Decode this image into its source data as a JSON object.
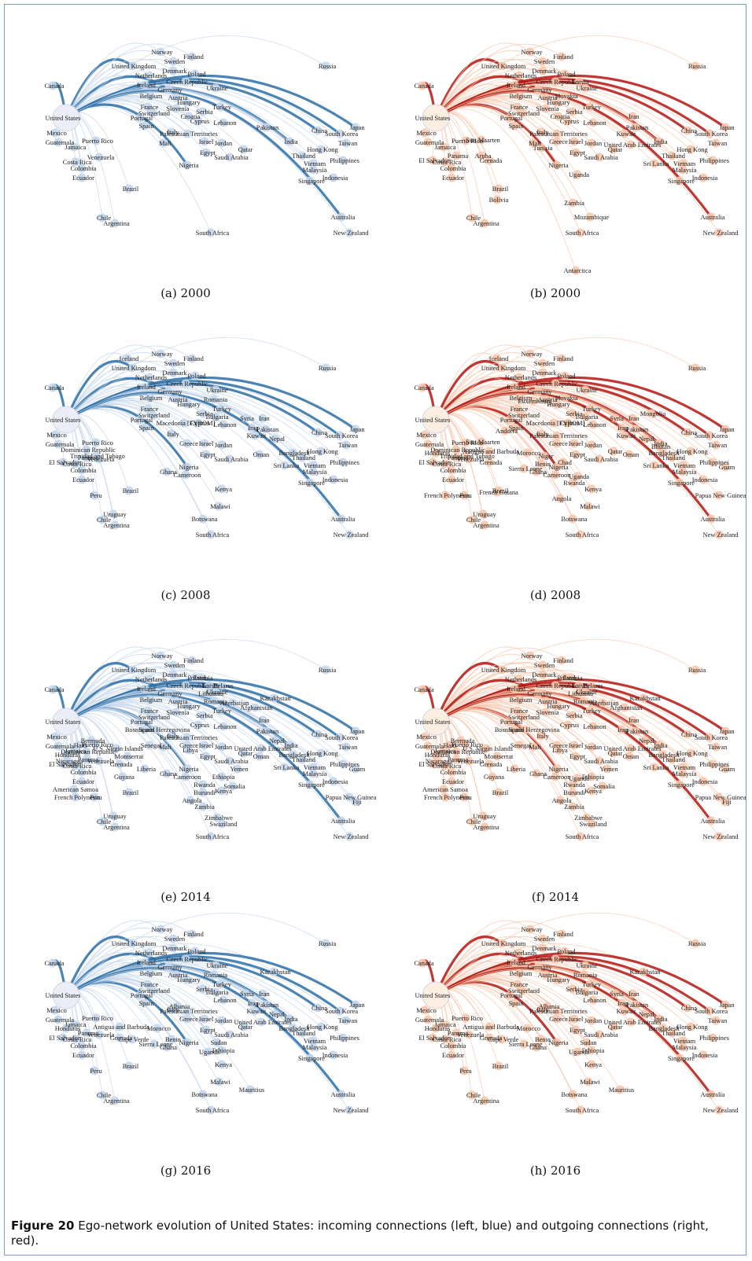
{
  "caption": {
    "label": "Figure 20",
    "text": "Ego-network evolution of United States: incoming connections (left, blue) and outgoing connections (right, red)."
  },
  "colors": {
    "incoming": "#2c6ea6",
    "incoming_light": "#c4d6ea",
    "outgoing": "#b31612",
    "outgoing_light": "#f6c7ad",
    "frame": "#7a9cc6"
  },
  "panels": [
    {
      "id": "a",
      "caption": "(a) 2000",
      "color": "blue",
      "hub": "United States",
      "labels": [
        "Canada",
        "United States",
        "Mexico",
        "Guatemala",
        "Jamaica",
        "Costa Rica",
        "Colombia",
        "Venezuela",
        "Ecuador",
        "Puerto Rico",
        "Brazil",
        "Chile",
        "Argentina",
        "United Kingdom",
        "Norway",
        "Sweden",
        "Finland",
        "Denmark",
        "Netherlands",
        "Poland",
        "Czech Republic",
        "Ireland",
        "Germany",
        "Ukraine",
        "Belgium",
        "Austria",
        "Hungary",
        "Slovenia",
        "France",
        "Switzerland",
        "Serbia",
        "Turkey",
        "Portugal",
        "Lebanon",
        "Spain",
        "Croatia",
        "Cyprus",
        "Italy",
        "Palestinian Territories",
        "Israel",
        "Pakistan",
        "Jordan",
        "Mali",
        "Egypt",
        "Qatar",
        "Nigeria",
        "Saudi Arabia",
        "India",
        "China",
        "South Korea",
        "Japan",
        "Taiwan",
        "Hong Kong",
        "Thailand",
        "Philippines",
        "Vietnam",
        "Malaysia",
        "Indonesia",
        "Singapore",
        "Russia",
        "South Africa",
        "Australia",
        "New Zealand"
      ]
    },
    {
      "id": "b",
      "caption": "(b) 2000",
      "color": "red",
      "hub": "United States",
      "labels": [
        "Canada",
        "United States",
        "Puerto Rico",
        "Sint Maarten",
        "Guatemala",
        "Mexico",
        "Jamaica",
        "El Salvador",
        "Panama",
        "Aruba",
        "Grenada",
        "Costa Rica",
        "Colombia",
        "Ecuador",
        "Brazil",
        "Bolivia",
        "Chile",
        "Argentina",
        "Antarctica",
        "United Kingdom",
        "Norway",
        "Sweden",
        "Finland",
        "Denmark",
        "Netherlands",
        "Czech Republic",
        "Poland",
        "Latvia",
        "Ukraine",
        "Ireland",
        "Germany",
        "Slovakia",
        "Belgium",
        "Hungary",
        "Turkey",
        "France",
        "Austria",
        "Serbia",
        "Switzerland",
        "Slovenia",
        "Iran",
        "Portugal",
        "Cyprus",
        "Spain",
        "Croatia",
        "Lebanon",
        "Italy",
        "Palestinian Territories",
        "Kuwait",
        "Pakistan",
        "Tunisia",
        "Greece",
        "Israel",
        "Qatar",
        "India",
        "Mali",
        "Egypt",
        "Jordan",
        "United Arab Emirates",
        "Thailand",
        "Saudi Arabia",
        "Sri Lanka",
        "Nigeria",
        "Uganda",
        "Zambia",
        "Mozambique",
        "South Africa",
        "China",
        "South Korea",
        "Japan",
        "Taiwan",
        "Hong Kong",
        "Philippines",
        "Vietnam",
        "Malaysia",
        "Indonesia",
        "Singapore",
        "Russia",
        "Australia",
        "New Zealand"
      ]
    },
    {
      "id": "c",
      "caption": "(c) 2008",
      "color": "blue",
      "hub": "United States",
      "labels": [
        "Canada",
        "United States",
        "Guatemala",
        "Mexico",
        "Dominican Republic",
        "Puerto Rico",
        "Panama",
        "Trinidad and Tobago",
        "El Salvador",
        "Costa Rica",
        "Venezuela",
        "Colombia",
        "Ecuador",
        "Peru",
        "Brazil",
        "Chile",
        "Uruguay",
        "Argentina",
        "Iceland",
        "Norway",
        "Sweden",
        "Finland",
        "Denmark",
        "Czech Republic",
        "United Kingdom",
        "Netherlands",
        "Poland",
        "Ireland",
        "Germany",
        "Ukraine",
        "Belgium",
        "Hungary",
        "Austria",
        "Romania",
        "France",
        "Turkey",
        "Serbia",
        "Bulgaria",
        "Portugal",
        "Switzerland",
        "Macedonia [FYROM]",
        "Cyprus",
        "Syria",
        "Spain",
        "Iran",
        "Italy",
        "Lebanon",
        "Iraq",
        "Kuwait",
        "Greece",
        "Israel",
        "Pakistan",
        "Jordan",
        "Nepal",
        "Egypt",
        "Saudi Arabia",
        "Nigeria",
        "Bangladesh",
        "Ghana",
        "Cameroon",
        "Oman",
        "Sri Lanka",
        "Kenya",
        "Malawi",
        "Botswana",
        "South Africa",
        "China",
        "South Korea",
        "Japan",
        "Taiwan",
        "Hong Kong",
        "Thailand",
        "Philippines",
        "Vietnam",
        "Malaysia",
        "Singapore",
        "Indonesia",
        "Russia",
        "Australia",
        "New Zealand"
      ]
    },
    {
      "id": "d",
      "caption": "(d) 2008",
      "color": "red",
      "hub": "United States",
      "labels": [
        "Canada",
        "United States",
        "Sint Maarten",
        "Puerto Rico",
        "Mexico",
        "Dominican Republic",
        "Guatemala",
        "Honduras",
        "Antigua and Barbuda",
        "Panama",
        "El Salvador",
        "Grenada",
        "Costa Rica",
        "Trinidad and Tobago",
        "Colombia",
        "French Polynesia",
        "Venezuela",
        "Ecuador",
        "French Guiana",
        "Peru",
        "Brazil",
        "Uruguay",
        "Chile",
        "Argentina",
        "Iceland",
        "Norway",
        "Sweden",
        "Finland",
        "United Kingdom",
        "Denmark",
        "Czech Republic",
        "Netherlands",
        "Poland",
        "Ukraine",
        "Belgium",
        "Germany",
        "Slovakia",
        "Ireland",
        "Luxembourg",
        "Hungary",
        "Turkey",
        "Syria",
        "France",
        "Austria",
        "Mongolia",
        "Portugal",
        "Switzerland",
        "Serbia",
        "Bulgaria",
        "Macedonia [FYROM]",
        "Kuwait",
        "Pakistan",
        "Andorra",
        "Italy",
        "Cyprus",
        "Lebanon",
        "Iraq",
        "Iran",
        "Nepal",
        "Bhutan",
        "Spain",
        "Palestinian Territories",
        "Greece",
        "Israel",
        "Jordan",
        "Oman",
        "Bangladesh",
        "Morocco",
        "Niger",
        "Qatar",
        "India",
        "Benin",
        "Chad",
        "Egypt",
        "Sri Lanka",
        "Sierra Leone",
        "Nigeria",
        "Saudi Arabia",
        "Ghana",
        "Uganda",
        "Kenya",
        "Cameroon",
        "Rwanda",
        "Angola",
        "Malawi",
        "Botswana",
        "South Africa",
        "China",
        "South Korea",
        "Japan",
        "Taiwan",
        "Hong Kong",
        "Thailand",
        "Philippines",
        "Guam",
        "Vietnam",
        "Malaysia",
        "Singapore",
        "Indonesia",
        "Papua New Guinea",
        "Australia",
        "New Zealand",
        "Russia"
      ]
    },
    {
      "id": "e",
      "caption": "(e) 2014",
      "color": "blue",
      "hub": "United States",
      "labels": [
        "Canada",
        "United States",
        "Bermuda",
        "Haiti",
        "U.S. Virgin Islands",
        "Mexico",
        "Honduras",
        "Montserrat",
        "Guatemala",
        "Dominican Republic",
        "Jamaica",
        "Puerto Rico",
        "Nicaragua",
        "Grenada",
        "El Salvador",
        "Panama",
        "Venezuela",
        "Costa Rica",
        "Colombia",
        "Guyana",
        "Ecuador",
        "American Samoa",
        "Peru",
        "French Polynesia",
        "Brazil",
        "Chile",
        "Uruguay",
        "Argentina",
        "Norway",
        "Sweden",
        "Finland",
        "Denmark",
        "Estonia",
        "United Kingdom",
        "Latvia",
        "Belarus",
        "Netherlands",
        "Lithuania",
        "Ireland",
        "Czech Republic",
        "Poland",
        "Ukraine",
        "Kazakhstan",
        "Belgium",
        "Germany",
        "Austria",
        "Romania",
        "Azerbaijan",
        "Hungary",
        "Turkey",
        "France",
        "Slovenia",
        "Cyprus",
        "Portugal",
        "Switzerland",
        "Serbia",
        "Lebanon",
        "Bosnia and Herzegovina",
        "Iran",
        "Afghanistan",
        "Palestinian Territories",
        "Nepal",
        "Spain",
        "Italy",
        "Greece",
        "Jordan",
        "Pakistan",
        "Bangladesh",
        "Senegal",
        "Nigeria",
        "Mali",
        "Libya",
        "Israel",
        "Qatar",
        "United Arab Emirates",
        "Ghana",
        "Egypt",
        "Saudi Arabia",
        "Liberia",
        "Cameroon",
        "Oman",
        "India",
        "Sri Lanka",
        "Yemen",
        "Rwanda",
        "Burundi",
        "Ethiopia",
        "Somalia",
        "Kenya",
        "Angola",
        "Zambia",
        "Zimbabwe",
        "Swaziland",
        "South Africa",
        "China",
        "South Korea",
        "Japan",
        "Taiwan",
        "Hong Kong",
        "Thailand",
        "Philippines",
        "Guam",
        "Vietnam",
        "Malaysia",
        "Indonesia",
        "Singapore",
        "Papua New Guinea",
        "Fiji",
        "Russia",
        "Australia",
        "New Zealand"
      ]
    },
    {
      "id": "f",
      "caption": "(f) 2014",
      "color": "red",
      "hub": "United States",
      "labels": [
        "Canada",
        "United States",
        "Bermuda",
        "Haiti",
        "U.S. Virgin Islands",
        "Mexico",
        "Honduras",
        "Montserrat",
        "Guatemala",
        "Dominican Republic",
        "Jamaica",
        "Puerto Rico",
        "Nicaragua",
        "Grenada",
        "El Salvador",
        "Venezuela",
        "Panama",
        "Costa Rica",
        "Colombia",
        "Guyana",
        "Ecuador",
        "American Samoa",
        "Peru",
        "French Polynesia",
        "Brazil",
        "Uruguay",
        "Chile",
        "Argentina",
        "Norway",
        "Sweden",
        "Finland",
        "United Kingdom",
        "Denmark",
        "Estonia",
        "Latvia",
        "Belarus",
        "Netherlands",
        "Lithuania",
        "Czech Republic",
        "Ireland",
        "Poland",
        "Ukraine",
        "Kazakhstan",
        "Belgium",
        "Austria",
        "Romania",
        "Azerbaijan",
        "Germany",
        "Hungary",
        "Turkey",
        "France",
        "Slovenia",
        "Cyprus",
        "Iraq",
        "Afghanistan",
        "Portugal",
        "Switzerland",
        "Serbia",
        "Lebanon",
        "Iran",
        "Bosnia and Herzegovina",
        "Nepal",
        "Pakistan",
        "Spain",
        "Italy",
        "Greece",
        "Bangladesh",
        "Senegal",
        "Nigeria",
        "Jordan",
        "Mali",
        "Libya",
        "Israel",
        "United Arab Emirates",
        "Qatar",
        "India",
        "Thailand",
        "Philippines",
        "Ghana",
        "Egypt",
        "Oman",
        "Sri Lanka",
        "Liberia",
        "Cameroon",
        "Uganda",
        "Yemen",
        "Saudi Arabia",
        "Vietnam",
        "Rwanda",
        "Ethiopia",
        "Malaysia",
        "Burundi",
        "Somalia",
        "Kenya",
        "Angola",
        "Zambia",
        "Zimbabwe",
        "Swaziland",
        "South Africa",
        "China",
        "South Korea",
        "Japan",
        "Taiwan",
        "Hong Kong",
        "Guam",
        "Indonesia",
        "Singapore",
        "Papua New Guinea",
        "Fiji",
        "Russia",
        "Australia",
        "New Zealand"
      ]
    },
    {
      "id": "g",
      "caption": "(g) 2016",
      "color": "blue",
      "hub": "United States",
      "labels": [
        "Canada",
        "United States",
        "Mexico",
        "Jamaica",
        "Antigua and Barbuda",
        "Guatemala",
        "Puerto Rico",
        "Grenada",
        "Honduras",
        "Panama",
        "El Salvador",
        "Costa Rica",
        "Venezuela",
        "Colombia",
        "Ecuador",
        "Peru",
        "Brazil",
        "Chile",
        "Argentina",
        "Norway",
        "Sweden",
        "Finland",
        "United Kingdom",
        "Denmark",
        "Netherlands",
        "Poland",
        "Czech Republic",
        "Ukraine",
        "Ireland",
        "Germany",
        "Romania",
        "Belgium",
        "Hungary",
        "Turkey",
        "Kazakhstan",
        "France",
        "Austria",
        "Serbia",
        "Portugal",
        "Switzerland",
        "Bulgaria",
        "Syria",
        "Iraq",
        "Spain",
        "Albania",
        "Lebanon",
        "Italy",
        "Palestinian Territories",
        "Iran",
        "Morocco",
        "Greece",
        "Israel",
        "Kuwait",
        "Pakistan",
        "Nepal",
        "Cape Verde",
        "Egypt",
        "Jordan",
        "Qatar",
        "Bangladesh",
        "Benin",
        "United Arab Emirates",
        "Sierra Leone",
        "Nigeria",
        "Sudan",
        "Ethiopia",
        "Saudi Arabia",
        "Ghana",
        "Uganda",
        "India",
        "Kenya",
        "Malawi",
        "Mauritius",
        "Botswana",
        "South Africa",
        "China",
        "South Korea",
        "Japan",
        "Taiwan",
        "Hong Kong",
        "Thailand",
        "Philippines",
        "Vietnam",
        "Malaysia",
        "Indonesia",
        "Singapore",
        "Russia",
        "Australia",
        "New Zealand"
      ]
    },
    {
      "id": "h",
      "caption": "(h) 2016",
      "color": "red",
      "hub": "United States",
      "labels": [
        "Canada",
        "United States",
        "Mexico",
        "Jamaica",
        "Antigua and Barbuda",
        "Guatemala",
        "Puerto Rico",
        "Grenada",
        "Honduras",
        "Panama",
        "El Salvador",
        "Costa Rica",
        "Venezuela",
        "Colombia",
        "Ecuador",
        "Peru",
        "Brazil",
        "Chile",
        "Argentina",
        "Norway",
        "Sweden",
        "Finland",
        "United Kingdom",
        "Denmark",
        "Netherlands",
        "Poland",
        "Czech Republic",
        "Ukraine",
        "Ireland",
        "Germany",
        "Romania",
        "Belgium",
        "Hungary",
        "Turkey",
        "Kazakhstan",
        "Austria",
        "France",
        "Serbia",
        "Bulgaria",
        "Syria",
        "Iraq",
        "Switzerland",
        "Portugal",
        "Spain",
        "Albania",
        "Lebanon",
        "Palestinian Territories",
        "Italy",
        "Iran",
        "Kuwait",
        "Pakistan",
        "Nepal",
        "Morocco",
        "Greece",
        "Israel",
        "Qatar",
        "Bangladesh",
        "India",
        "United Arab Emirates",
        "Cape Verde",
        "Egypt",
        "Jordan",
        "Saudi Arabia",
        "Sierra Leone",
        "Benin",
        "Nigeria",
        "Sudan",
        "Ethiopia",
        "Ghana",
        "Uganda",
        "Kenya",
        "Malawi",
        "Botswana",
        "Mauritius",
        "South Africa",
        "China",
        "South Korea",
        "Japan",
        "Taiwan",
        "Hong Kong",
        "Thailand",
        "Philippines",
        "Vietnam",
        "Malaysia",
        "Indonesia",
        "Singapore",
        "Russia",
        "Australia",
        "New Zealand"
      ]
    }
  ]
}
